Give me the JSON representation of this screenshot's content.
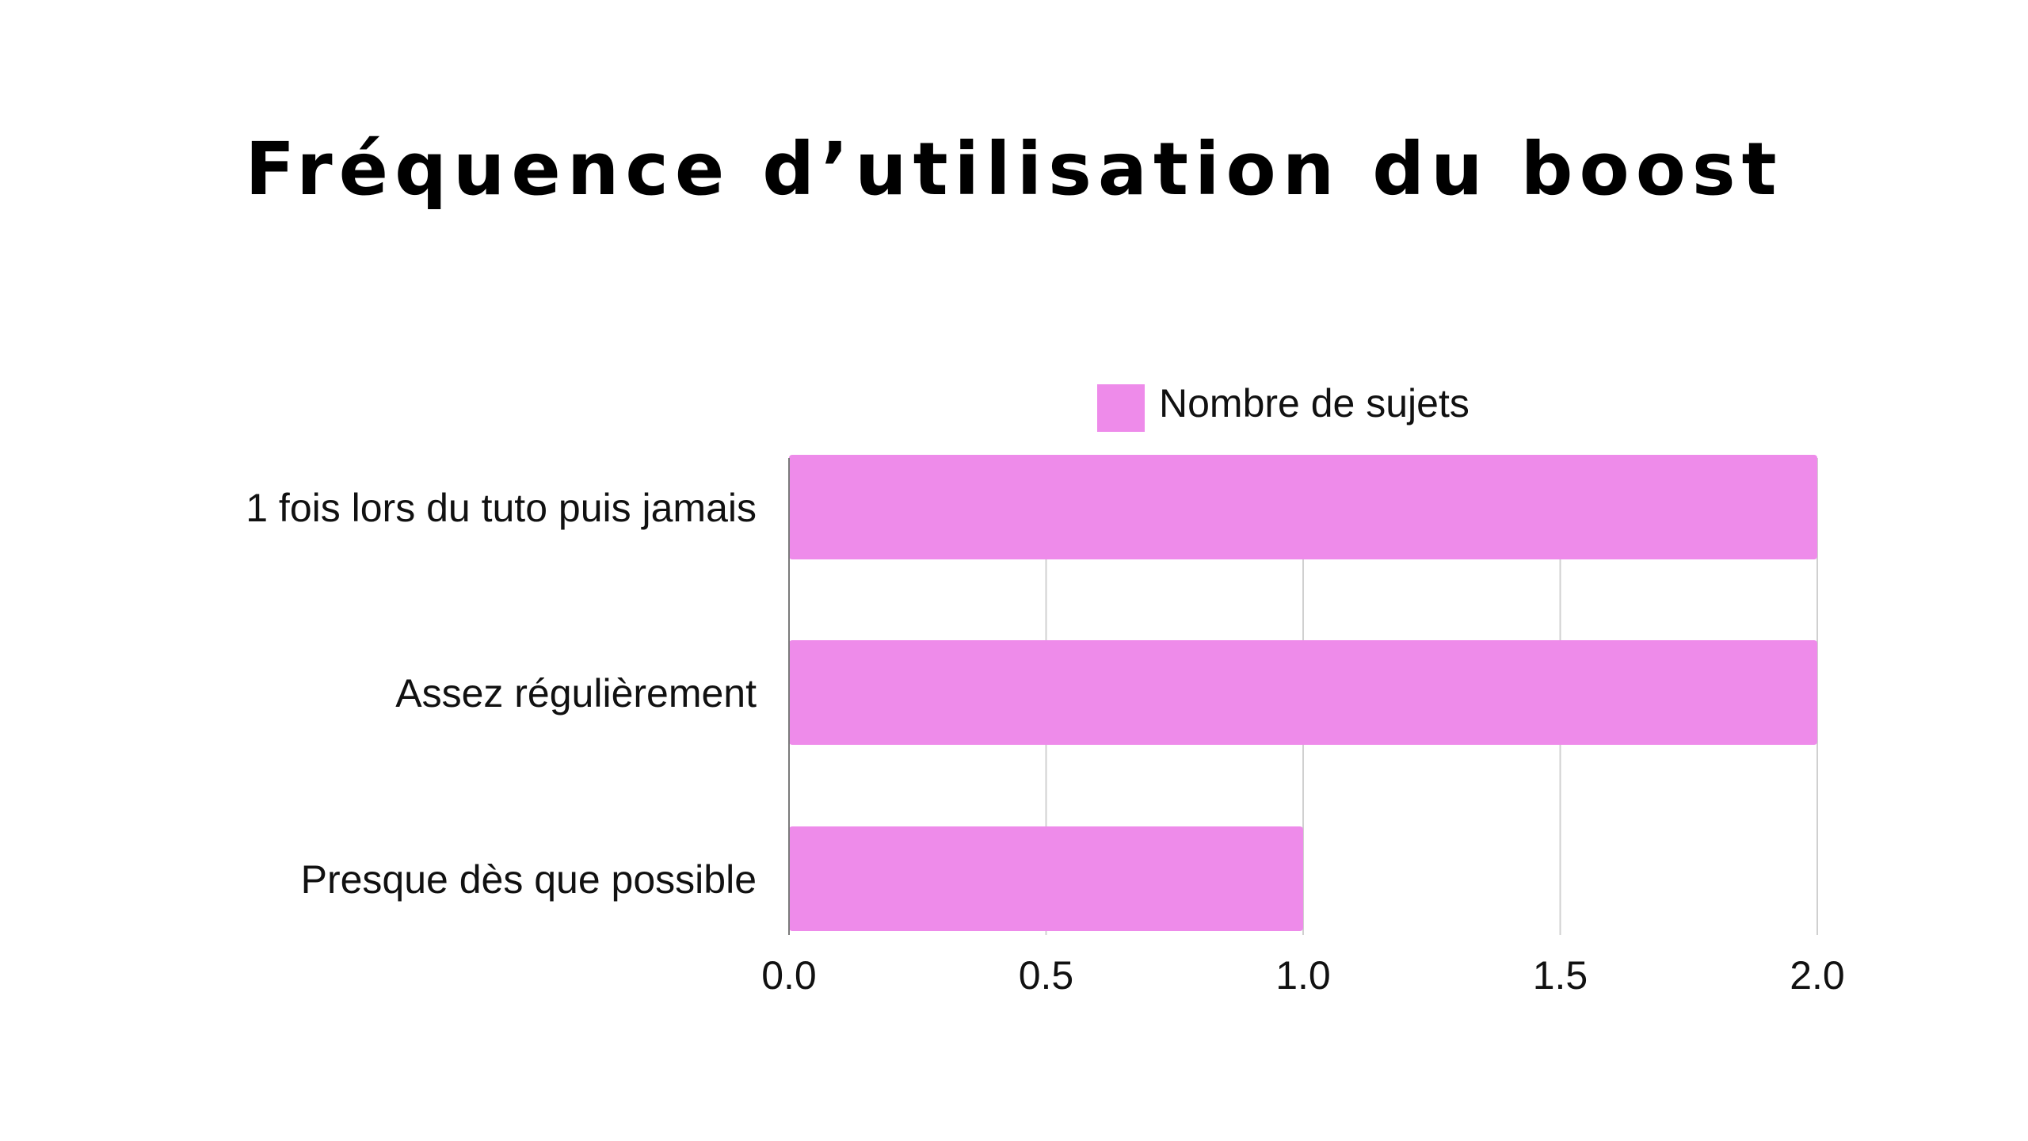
{
  "chart_data": {
    "type": "bar",
    "orientation": "horizontal",
    "title": "Fréquence d’utilisation du boost",
    "categories": [
      "1 fois lors du tuto puis jamais",
      "Assez régulièrement",
      "Presque dès que possible"
    ],
    "series": [
      {
        "name": "Nombre de sujets",
        "values": [
          2,
          2,
          1
        ],
        "color": "#EE8BEA"
      }
    ],
    "xlim": [
      0,
      2
    ],
    "x_ticks": [
      "0.0",
      "0.5",
      "1.0",
      "1.5",
      "2.0"
    ],
    "xlabel": "",
    "ylabel": "",
    "grid": true,
    "legend": "top-center"
  }
}
